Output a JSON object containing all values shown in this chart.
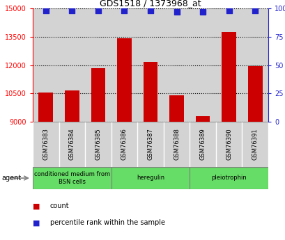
{
  "title": "GDS1518 / 1373968_at",
  "categories": [
    "GSM76383",
    "GSM76384",
    "GSM76385",
    "GSM76386",
    "GSM76387",
    "GSM76388",
    "GSM76389",
    "GSM76390",
    "GSM76391"
  ],
  "counts": [
    10550,
    10650,
    11850,
    13400,
    12150,
    10400,
    9300,
    13750,
    11950
  ],
  "percentiles": [
    98,
    98,
    98,
    98,
    98,
    97,
    97,
    98,
    98
  ],
  "ylim_left": [
    9000,
    15000
  ],
  "ylim_right": [
    0,
    100
  ],
  "yticks_left": [
    9000,
    10500,
    12000,
    13500,
    15000
  ],
  "yticks_right": [
    0,
    25,
    50,
    75,
    100
  ],
  "bar_color": "#cc0000",
  "dot_color": "#2222cc",
  "bg_color": "#d3d3d3",
  "group_labels": [
    "conditioned medium from\nBSN cells",
    "heregulin",
    "pleiotrophin"
  ],
  "group_starts": [
    0,
    3,
    6
  ],
  "group_ends": [
    3,
    6,
    9
  ],
  "group_color": "#66dd66",
  "legend_count_label": "count",
  "legend_pct_label": "percentile rank within the sample",
  "xlabel_agent": "agent",
  "dot_size": 30,
  "bar_width": 0.55
}
